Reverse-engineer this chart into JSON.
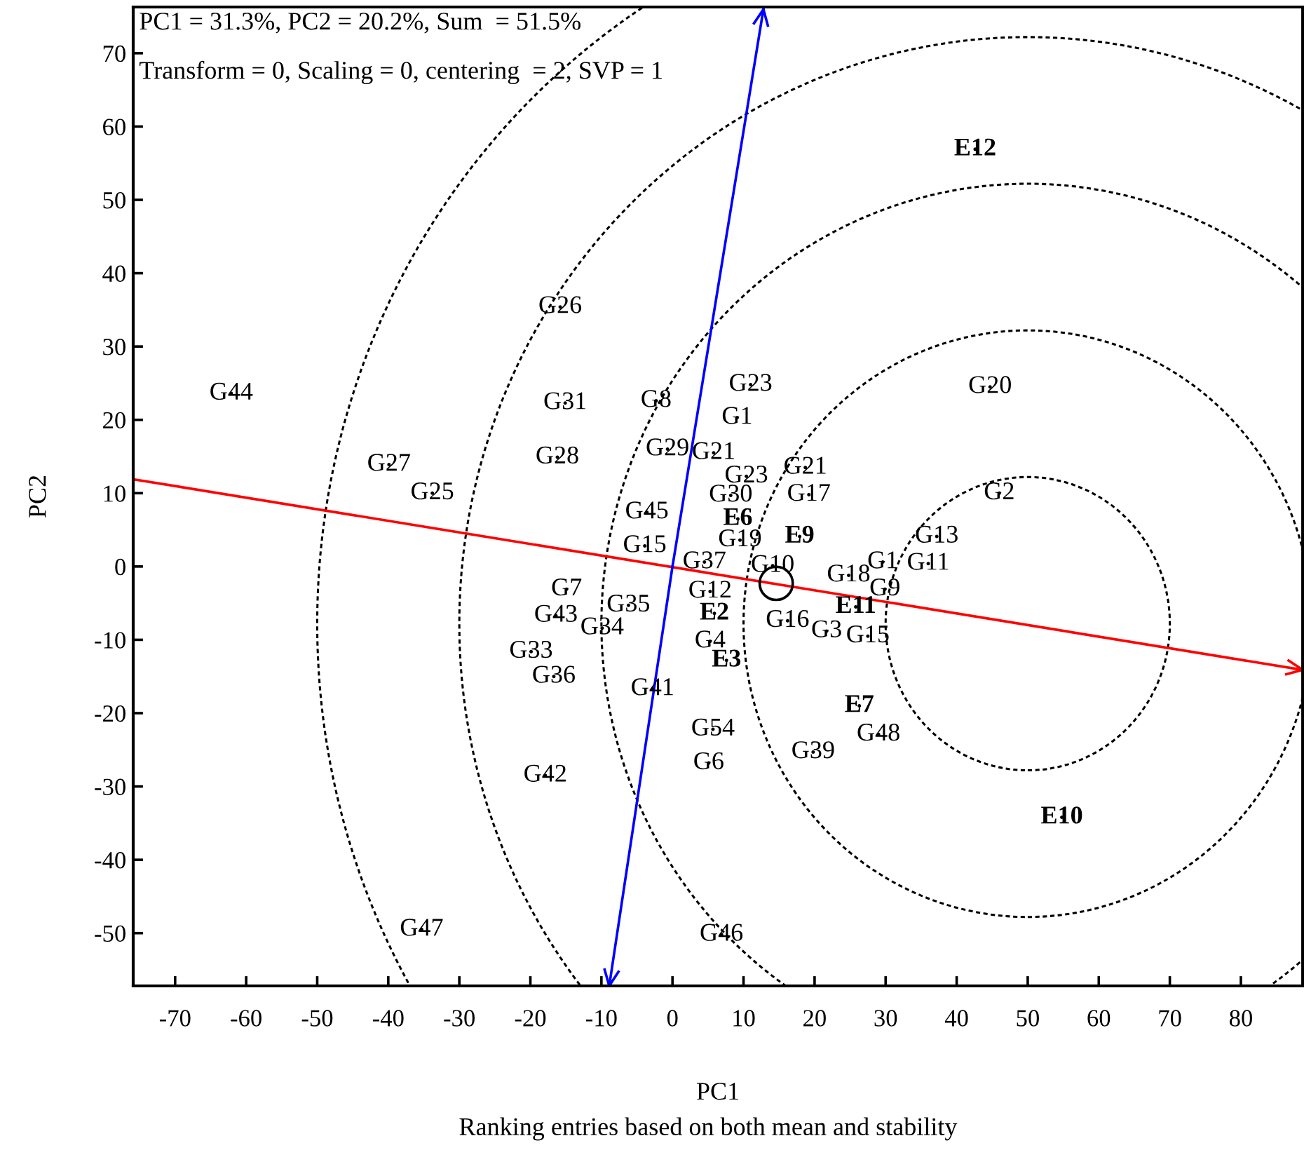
{
  "chart_data": {
    "type": "scatter",
    "xlabel": "PC1",
    "ylabel": "PC2",
    "xlim": [
      -75.9,
      88.7
    ],
    "ylim": [
      -57.2,
      76.3
    ],
    "xticks": [
      -70,
      -60,
      -50,
      -40,
      -30,
      -20,
      -10,
      0,
      10,
      20,
      30,
      40,
      50,
      60,
      70,
      80
    ],
    "yticks": [
      -50,
      -40,
      -30,
      -20,
      -10,
      0,
      10,
      20,
      30,
      40,
      50,
      60,
      70
    ],
    "grid": false,
    "legend": false,
    "series": [
      {
        "type": "line",
        "color": "#ff0000",
        "line_style": "solid",
        "x": [
          -75.9,
          88.7
        ],
        "values": [
          11.9,
          -14.1
        ]
      },
      {
        "type": "line",
        "color": "#0000ff",
        "line_style": "solid",
        "x": [
          0,
          12.8
        ],
        "values": [
          0,
          76
        ]
      },
      {
        "type": "line",
        "color": "#0000ff",
        "line_style": "solid",
        "x": [
          0,
          -8.9
        ],
        "values": [
          0,
          -57.2
        ]
      },
      {
        "color": "#000000",
        "marker": "circle",
        "x": [
          14.6
        ],
        "values": [
          -2.3
        ]
      },
      {
        "color": "#000000",
        "marker": "none",
        "x": [
          -62.1,
          -39.9,
          -33.8,
          -15.8,
          -15.1,
          -16.2,
          -2.3,
          -0.7,
          11.0,
          9.1,
          5.8,
          10.4,
          18.7,
          8.2,
          19.2,
          44.7,
          46.0,
          -3.6,
          -3.9,
          4.5,
          -14.9,
          -16.4,
          -6.2,
          -9.9,
          -19.9,
          -16.7,
          -2.8,
          -17.9,
          -35.3,
          5.3,
          5.3,
          5.7,
          5.1,
          6.9,
          9.5,
          14.1,
          16.2,
          21.7,
          27.5,
          24.8,
          29.6,
          29.9,
          36.0,
          37.2,
          29.0,
          19.8
        ],
        "values": [
          23.6,
          13.9,
          10.0,
          35.4,
          22.3,
          14.9,
          22.6,
          16.0,
          24.8,
          20.3,
          15.5,
          12.3,
          13.5,
          9.7,
          9.8,
          24.5,
          10.0,
          7.4,
          2.8,
          0.6,
          -3.1,
          -6.7,
          -5.3,
          -8.4,
          -11.6,
          -15.0,
          -16.7,
          -28.5,
          -49.5,
          -3.4,
          -10.2,
          -22.2,
          -26.8,
          -50.2,
          3.6,
          0.1,
          -7.4,
          -8.8,
          -9.5,
          -1.2,
          0.6,
          -3.1,
          0.4,
          4.1,
          -22.9,
          -25.3
        ],
        "value_labels": [
          "G44",
          "G27",
          "G25",
          "G26",
          "G31",
          "G28",
          "G8",
          "G29",
          "G23",
          "G1",
          "G21",
          "G23",
          "G21",
          "G30",
          "G17",
          "G20",
          "G2",
          "G45",
          "G15",
          "G37",
          "G7",
          "G43",
          "G35",
          "G34",
          "G33",
          "G36",
          "G41",
          "G42",
          "G47",
          "G12",
          "G4",
          "G54",
          "G6",
          "G46",
          "G19",
          "G10",
          "G16",
          "G3",
          "G15",
          "G18",
          "G1",
          "G9",
          "G11",
          "G13",
          "G48",
          "G39"
        ]
      },
      {
        "color": "#000000",
        "marker": "none",
        "x": [
          42.6,
          9.2,
          17.9,
          5.9,
          7.6,
          25.8,
          26.3,
          54.8
        ],
        "values": [
          56.9,
          6.5,
          4.1,
          -6.4,
          -12.8,
          -5.5,
          -19.0,
          -34.2
        ],
        "value_labels": [
          "E12",
          "E6",
          "E9",
          "E2",
          "E3",
          "E11",
          "E7",
          "E10"
        ]
      }
    ],
    "annotations": [
      "PC1 = 31.3%, PC2 = 20.2%, Sum  = 51.5%",
      "Transform = 0, Scaling = 0, centering  = 2, SVP = 1",
      "Ranking entries based on both mean and stability"
    ]
  }
}
